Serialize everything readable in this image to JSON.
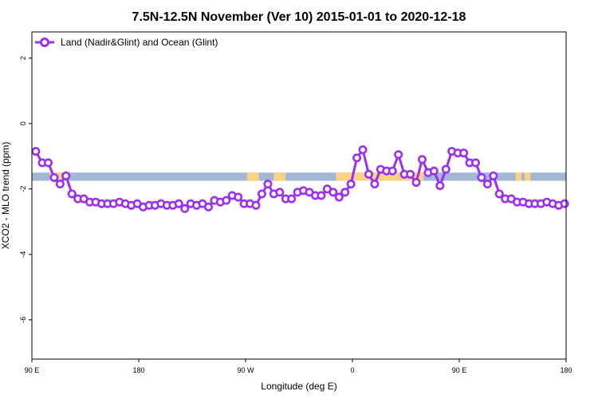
{
  "chart_data": {
    "type": "line",
    "title": "7.5N-12.5N November (Ver 10)   2015-01-01 to 2020-12-18",
    "xlabel": "Longitude (deg E)",
    "ylabel": "XCO2 - MLO trend (ppm)",
    "xlim": [
      90,
      270
    ],
    "ylim": [
      -7.2,
      2.8
    ],
    "x_ticks": [
      {
        "value": 90,
        "label": "90 E"
      },
      {
        "value": 126,
        "label": "180"
      },
      {
        "value": 162,
        "label": "90 W"
      },
      {
        "value": 198,
        "label": "0"
      },
      {
        "value": 234,
        "label": "90 E"
      },
      {
        "value": 270,
        "label": "180"
      }
    ],
    "y_ticks": [
      {
        "value": 2,
        "label": "2"
      },
      {
        "value": 0,
        "label": "0"
      },
      {
        "value": -2,
        "label": "-2"
      },
      {
        "value": -4,
        "label": "-4"
      },
      {
        "value": -6,
        "label": "-6"
      }
    ],
    "legend_position": "top-left",
    "series": [
      {
        "name": "Land (Nadir&Glint) and Ocean (Glint)",
        "color": "#9b30f0",
        "x": [
          91.3,
          93.5,
          95.5,
          97.5,
          99.5,
          101.5,
          103.5,
          105.5,
          107.5,
          109.5,
          111.5,
          113.5,
          115.5,
          117.5,
          119.5,
          121.5,
          123.5,
          125.5,
          127.5,
          129.5,
          131.5,
          133.5,
          135.5,
          137.5,
          139.5,
          141.5,
          143.5,
          145.5,
          147.5,
          149.5,
          151.5,
          153.5,
          155.5,
          157.5,
          159.5,
          161.5,
          163.5,
          165.5,
          167.5,
          169.5,
          171.5,
          173.5,
          175.5,
          177.5,
          179.5,
          181.5,
          183.5,
          185.5,
          187.5,
          189.5,
          191.5,
          193.5,
          195.5,
          197.5,
          199.5,
          201.5,
          203.5,
          205.5,
          207.5,
          209.5,
          211.5,
          213.5,
          215.5,
          217.5,
          219.5,
          221.5,
          223.5,
          225.5,
          227.5,
          229.5,
          231.5,
          233.5,
          235.5,
          237.5,
          239.5,
          241.5,
          243.5,
          245.5,
          247.5,
          249.5,
          251.5,
          253.5,
          255.5,
          257.5,
          259.5,
          261.5,
          263.5,
          265.5,
          267.5,
          269.5
        ],
        "y": [
          -0.85,
          -1.2,
          -1.2,
          -1.65,
          -1.85,
          -1.6,
          -2.15,
          -2.3,
          -2.3,
          -2.4,
          -2.4,
          -2.45,
          -2.45,
          -2.45,
          -2.4,
          -2.45,
          -2.5,
          -2.45,
          -2.55,
          -2.5,
          -2.5,
          -2.45,
          -2.5,
          -2.5,
          -2.45,
          -2.6,
          -2.45,
          -2.5,
          -2.45,
          -2.55,
          -2.35,
          -2.4,
          -2.35,
          -2.2,
          -2.25,
          -2.45,
          -2.45,
          -2.5,
          -2.15,
          -1.85,
          -2.15,
          -2.1,
          -2.3,
          -2.3,
          -2.1,
          -2.05,
          -2.1,
          -2.2,
          -2.2,
          -2.0,
          -2.1,
          -2.25,
          -2.1,
          -1.85,
          -1.05,
          -0.8,
          -1.55,
          -1.85,
          -1.4,
          -1.45,
          -1.45,
          -0.95,
          -1.55,
          -1.55,
          -1.8,
          -1.1,
          -1.5,
          -1.45,
          -1.9,
          -1.4,
          -0.85,
          -0.9,
          -0.9,
          -1.2,
          -1.2,
          -1.65,
          -1.85,
          -1.6,
          -2.15,
          -2.3,
          -2.3,
          -2.4,
          -2.4,
          -2.45,
          -2.45,
          -2.45,
          -2.4,
          -2.45,
          -2.5,
          -2.45
        ]
      }
    ],
    "band": {
      "y_range": [
        -1.75,
        -1.5
      ],
      "ocean_color": "#a2b7d4",
      "land_color": "#fad282"
    }
  }
}
